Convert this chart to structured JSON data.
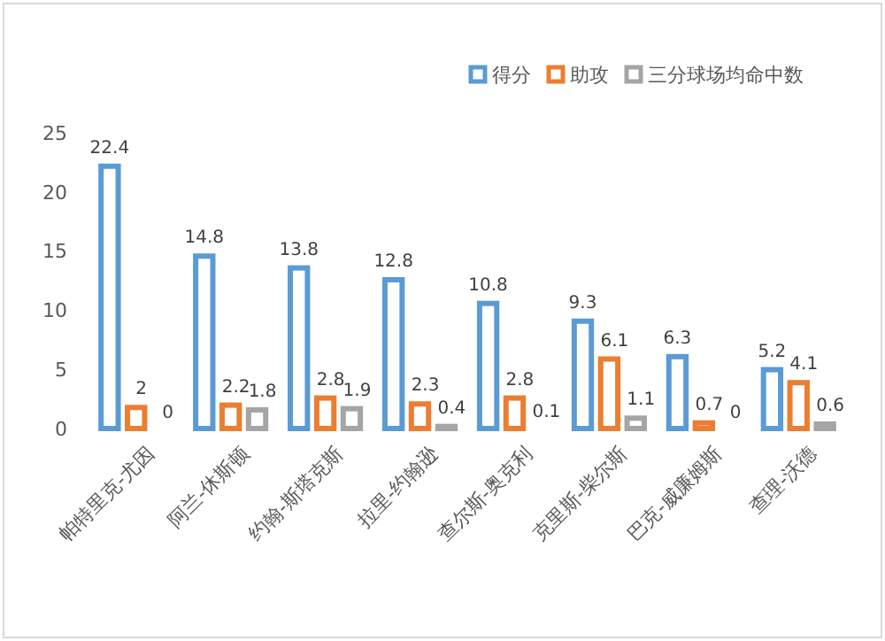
{
  "chart_data": {
    "type": "bar",
    "categories": [
      "帕特里克-尤因",
      "阿兰-休斯顿",
      "约翰-斯塔克斯",
      "拉里-约翰逊",
      "查尔斯-奥克利",
      "克里斯-柴尔斯",
      "巴克-威廉姆斯",
      "查理-沃德"
    ],
    "series": [
      {
        "name": "得分",
        "color": "#5b9bd5",
        "values": [
          22.4,
          14.8,
          13.8,
          12.8,
          10.8,
          9.3,
          6.3,
          5.2
        ]
      },
      {
        "name": "助攻",
        "color": "#ed7d31",
        "values": [
          2,
          2.2,
          2.8,
          2.3,
          2.8,
          6.1,
          0.7,
          4.1
        ]
      },
      {
        "name": "三分球场均命中数",
        "color": "#a5a5a5",
        "values": [
          0,
          1.8,
          1.9,
          0.4,
          0.1,
          1.1,
          0,
          0.6
        ]
      }
    ],
    "ylim": [
      0,
      25
    ],
    "yticks": [
      0,
      5,
      10,
      15,
      20,
      25
    ],
    "grid": false,
    "legend": "top",
    "data_labels": true
  }
}
